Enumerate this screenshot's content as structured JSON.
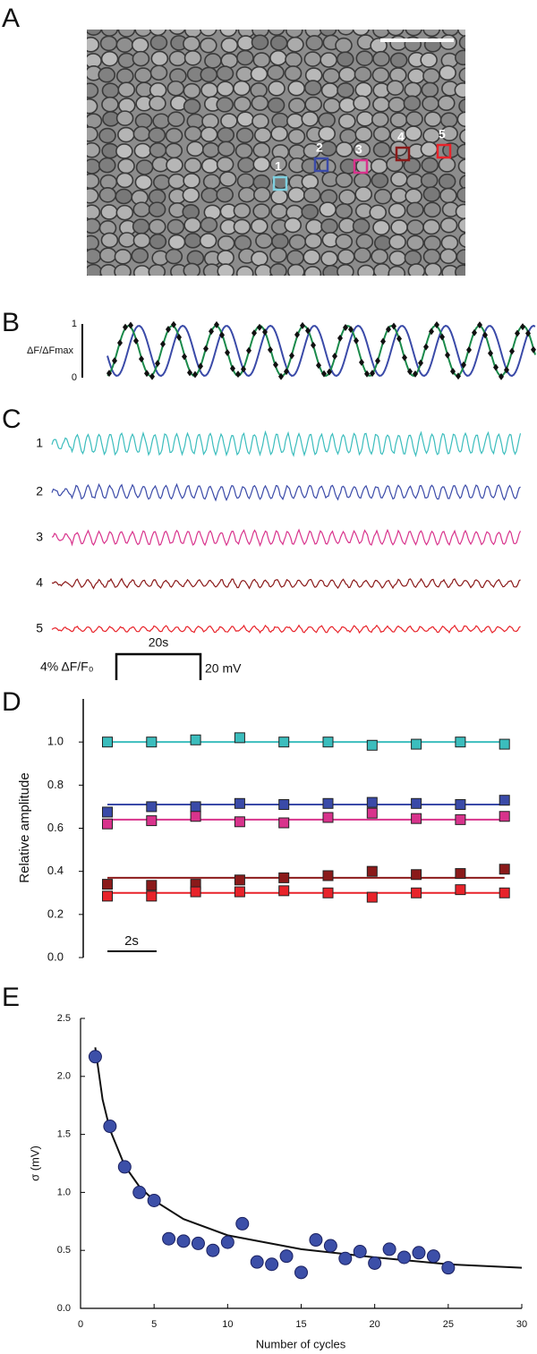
{
  "panel_labels": [
    "A",
    "B",
    "C",
    "D",
    "E"
  ],
  "image": {
    "roi_labels": [
      "1",
      "2",
      "3",
      "4",
      "5"
    ],
    "roi_colors": [
      "#7fd0e0",
      "#3a4aa8",
      "#d8338c",
      "#8b1a1a",
      "#e8232a"
    ]
  },
  "chart_data": [
    {
      "type": "waveform",
      "ylabel": "ΔF/ΔFmax",
      "ylim": [
        0,
        1
      ],
      "yticks": [
        0,
        1
      ]
    },
    {
      "type": "traces",
      "labels": [
        "1",
        "2",
        "3",
        "4",
        "5"
      ],
      "colors": [
        "#3bbdbd",
        "#3a4aa8",
        "#d8338c",
        "#8b1a1a",
        "#e8232a"
      ],
      "scale_labels": [
        "4% ΔF/F₀",
        "20s",
        "20 mV"
      ]
    },
    {
      "type": "scatter-series",
      "ylabel": "Relative amplitude",
      "scale_label": "2s",
      "categories": [
        null,
        null,
        null,
        null,
        null,
        null,
        null,
        null,
        null,
        null
      ],
      "ylim": [
        0,
        1.2
      ],
      "yticks": [
        {
          "value": 0,
          "label": "0.0"
        },
        {
          "value": 0.2,
          "label": "0.2"
        },
        {
          "value": 0.4,
          "label": "0.4"
        },
        {
          "value": 0.6,
          "label": "0.6"
        },
        {
          "value": 0.8,
          "label": "0.8"
        },
        {
          "value": 1,
          "label": "1.0"
        }
      ],
      "series": [
        {
          "color": "#3bbdbd",
          "values": [
            1.0,
            1.0,
            1.01,
            1.02,
            1.0,
            1.0,
            0.985,
            0.99,
            1.0,
            0.99
          ],
          "fit": 1.0
        },
        {
          "color": "#3a4aa8",
          "values": [
            0.675,
            0.7,
            0.7,
            0.715,
            0.71,
            0.715,
            0.72,
            0.715,
            0.71,
            0.73
          ],
          "fit": 0.71
        },
        {
          "color": "#d8338c",
          "values": [
            0.62,
            0.635,
            0.655,
            0.63,
            0.625,
            0.65,
            0.67,
            0.645,
            0.64,
            0.655
          ],
          "fit": 0.64
        },
        {
          "color": "#8b1a1a",
          "values": [
            0.34,
            0.335,
            0.34,
            0.36,
            0.37,
            0.38,
            0.4,
            0.385,
            0.39,
            0.41
          ],
          "fit": 0.37
        },
        {
          "color": "#e8232a",
          "values": [
            0.285,
            0.285,
            0.305,
            0.305,
            0.31,
            0.3,
            0.28,
            0.3,
            0.315,
            0.3
          ],
          "fit": 0.3
        }
      ]
    },
    {
      "type": "scatter",
      "xlabel": "Number of cycles",
      "ylabel": "σ (mV)",
      "color": "#3c4fa8",
      "x": [
        1,
        2,
        3,
        4,
        5,
        6,
        7,
        8,
        9,
        10,
        11,
        12,
        13,
        14,
        15,
        16,
        17,
        18,
        19,
        20,
        21,
        22,
        23,
        24,
        25
      ],
      "values": [
        2.17,
        1.57,
        1.22,
        1.0,
        0.93,
        0.6,
        0.58,
        0.56,
        0.5,
        0.57,
        0.73,
        0.4,
        0.38,
        0.45,
        0.31,
        0.59,
        0.54,
        0.43,
        0.49,
        0.39,
        0.51,
        0.44,
        0.48,
        0.45,
        0.35
      ],
      "fit": {
        "x": [
          1,
          1.5,
          2,
          3,
          4,
          5,
          7,
          10,
          15,
          20,
          25,
          30
        ],
        "values": [
          2.25,
          1.8,
          1.54,
          1.23,
          1.05,
          0.93,
          0.77,
          0.63,
          0.51,
          0.44,
          0.38,
          0.35
        ]
      },
      "xlim": [
        0,
        30
      ],
      "xticks": [
        0,
        5,
        10,
        15,
        20,
        25,
        30
      ],
      "ylim": [
        0,
        2.5
      ],
      "yticks": [
        {
          "value": 0,
          "label": "0.0"
        },
        {
          "value": 0.5,
          "label": "0.5"
        },
        {
          "value": 1,
          "label": "1.0"
        },
        {
          "value": 1.5,
          "label": "1.5"
        },
        {
          "value": 2,
          "label": "2.0"
        },
        {
          "value": 2.5,
          "label": "2.5"
        }
      ]
    }
  ]
}
